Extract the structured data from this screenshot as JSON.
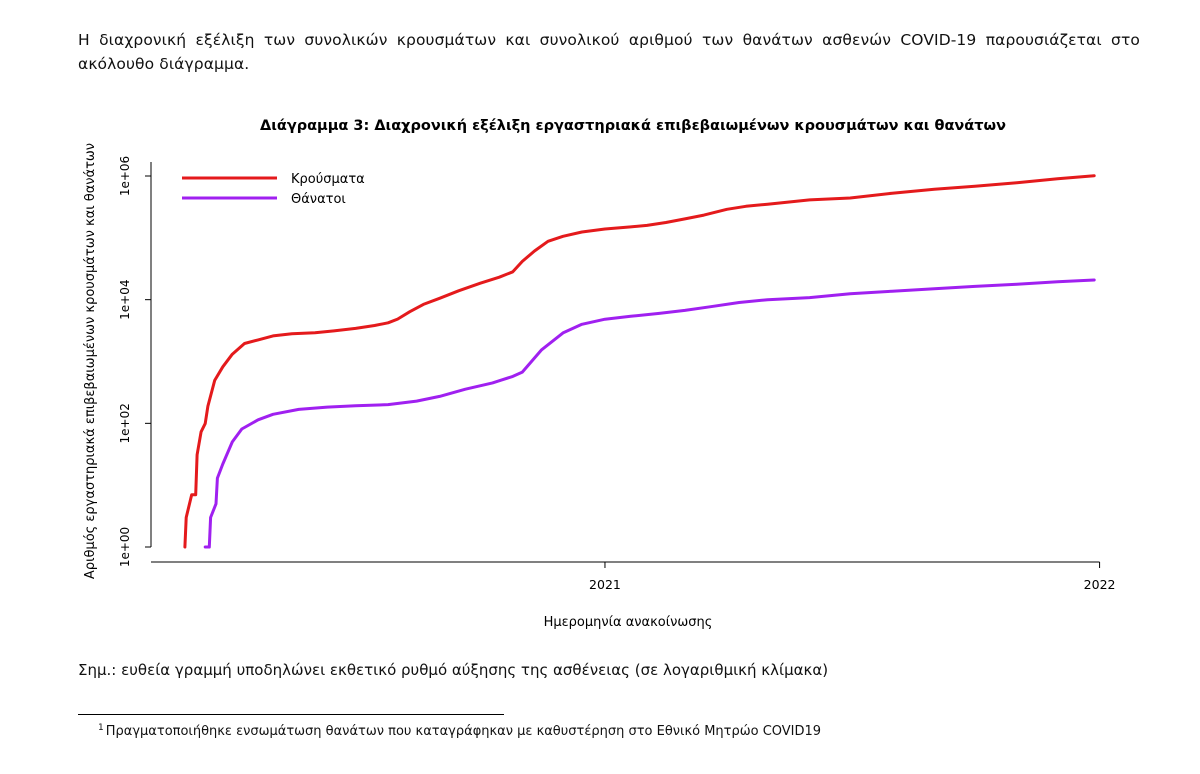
{
  "intro_text": "Η διαχρονική εξέλιξη των συνολικών κρουσμάτων και συνολικού αριθμού των θανάτων ασθενών COVID-19 παρουσιάζεται στο ακόλουθο διάγραμμα.",
  "note_text": "Σημ.: ευθεία γραμμή υποδηλώνει εκθετικό ρυθμό αύξησης της ασθένειας (σε λογαριθμική κλίμακα)",
  "footnote": {
    "marker": "1",
    "text": "Πραγματοποιήθηκε ενσωμάτωση θανάτων που καταγράφηκαν με καθυστέρηση στο Εθνικό Μητρώο COVID19"
  },
  "colors": {
    "cases": "#e41a1c",
    "deaths": "#a020f0",
    "axis": "#000000"
  },
  "chart_data": {
    "type": "line",
    "title": "Διάγραμμα 3: Διαχρονική εξέλιξη εργαστηριακά επιβεβαιωμένων κρουσμάτων και θανάτων",
    "xlabel": "Ημερομηνία ανακοίνωσης",
    "ylabel": "Αριθμός εργαστηριακά επιβεβαιωμένων κρουσμάτων και θανάτων",
    "y_scale": "log10",
    "xlim": [
      "2020-02-01",
      "2022-01-05"
    ],
    "ylim": [
      1,
      1000000
    ],
    "x_ticks": [
      {
        "date": "2021-01-01",
        "label": "2021"
      },
      {
        "date": "2022-01-01",
        "label": "2022"
      }
    ],
    "y_ticks": [
      {
        "value": 1,
        "label": "1e+00"
      },
      {
        "value": 100,
        "label": "1e+02"
      },
      {
        "value": 10000,
        "label": "1e+04"
      },
      {
        "value": 1000000,
        "label": "1e+06"
      }
    ],
    "legend_position": "top-left",
    "series": [
      {
        "name": "Κρούσματα",
        "color": "#e41a1c",
        "points": [
          [
            "2020-02-26",
            1
          ],
          [
            "2020-02-27",
            3
          ],
          [
            "2020-03-02",
            7
          ],
          [
            "2020-03-05",
            7
          ],
          [
            "2020-03-06",
            31
          ],
          [
            "2020-03-09",
            73
          ],
          [
            "2020-03-12",
            99
          ],
          [
            "2020-03-14",
            190
          ],
          [
            "2020-03-19",
            495
          ],
          [
            "2020-03-25",
            821
          ],
          [
            "2020-04-01",
            1314
          ],
          [
            "2020-04-10",
            1955
          ],
          [
            "2020-04-20",
            2235
          ],
          [
            "2020-05-01",
            2591
          ],
          [
            "2020-05-15",
            2810
          ],
          [
            "2020-06-01",
            2918
          ],
          [
            "2020-06-15",
            3121
          ],
          [
            "2020-07-01",
            3432
          ],
          [
            "2020-07-15",
            3826
          ],
          [
            "2020-07-25",
            4227
          ],
          [
            "2020-08-01",
            4855
          ],
          [
            "2020-08-10",
            6381
          ],
          [
            "2020-08-20",
            8381
          ],
          [
            "2020-09-01",
            10524
          ],
          [
            "2020-09-15",
            13913
          ],
          [
            "2020-10-01",
            18475
          ],
          [
            "2020-10-15",
            23123
          ],
          [
            "2020-10-25",
            28216
          ],
          [
            "2020-11-01",
            41527
          ],
          [
            "2020-11-10",
            61160
          ],
          [
            "2020-11-20",
            87980
          ],
          [
            "2020-12-01",
            105852
          ],
          [
            "2020-12-15",
            124373
          ],
          [
            "2021-01-01",
            138850
          ],
          [
            "2021-01-20",
            150479
          ],
          [
            "2021-02-01",
            158716
          ],
          [
            "2021-02-15",
            177126
          ],
          [
            "2021-03-01",
            202219
          ],
          [
            "2021-03-15",
            233520
          ],
          [
            "2021-04-01",
            289597
          ],
          [
            "2021-04-15",
            323000
          ],
          [
            "2021-05-01",
            349876
          ],
          [
            "2021-06-01",
            410000
          ],
          [
            "2021-07-01",
            440000
          ],
          [
            "2021-08-01",
            527000
          ],
          [
            "2021-09-01",
            610000
          ],
          [
            "2021-10-01",
            682000
          ],
          [
            "2021-11-01",
            780000
          ],
          [
            "2021-12-01",
            900000
          ],
          [
            "2021-12-28",
            1010000
          ]
        ]
      },
      {
        "name": "Θάνατοι",
        "color": "#a020f0",
        "points": [
          [
            "2020-03-12",
            1
          ],
          [
            "2020-03-15",
            1
          ],
          [
            "2020-03-16",
            3
          ],
          [
            "2020-03-20",
            5
          ],
          [
            "2020-03-21",
            13
          ],
          [
            "2020-03-25",
            22
          ],
          [
            "2020-04-01",
            50
          ],
          [
            "2020-04-08",
            81
          ],
          [
            "2020-04-20",
            114
          ],
          [
            "2020-05-01",
            140
          ],
          [
            "2020-05-20",
            168
          ],
          [
            "2020-06-10",
            183
          ],
          [
            "2020-07-01",
            192
          ],
          [
            "2020-07-25",
            201
          ],
          [
            "2020-08-15",
            229
          ],
          [
            "2020-09-01",
            273
          ],
          [
            "2020-09-20",
            357
          ],
          [
            "2020-10-10",
            450
          ],
          [
            "2020-10-25",
            575
          ],
          [
            "2020-11-01",
            673
          ],
          [
            "2020-11-15",
            1528
          ],
          [
            "2020-12-01",
            2902
          ],
          [
            "2020-12-15",
            4000
          ],
          [
            "2021-01-01",
            4838
          ],
          [
            "2021-01-20",
            5387
          ],
          [
            "2021-02-10",
            6000
          ],
          [
            "2021-03-01",
            6699
          ],
          [
            "2021-03-20",
            7700
          ],
          [
            "2021-04-10",
            9000
          ],
          [
            "2021-05-01",
            10000
          ],
          [
            "2021-06-01",
            10800
          ],
          [
            "2021-07-01",
            12500
          ],
          [
            "2021-08-01",
            13700
          ],
          [
            "2021-09-01",
            15000
          ],
          [
            "2021-10-01",
            16400
          ],
          [
            "2021-11-01",
            17700
          ],
          [
            "2021-12-01",
            19500
          ],
          [
            "2021-12-28",
            20800
          ]
        ]
      }
    ]
  }
}
